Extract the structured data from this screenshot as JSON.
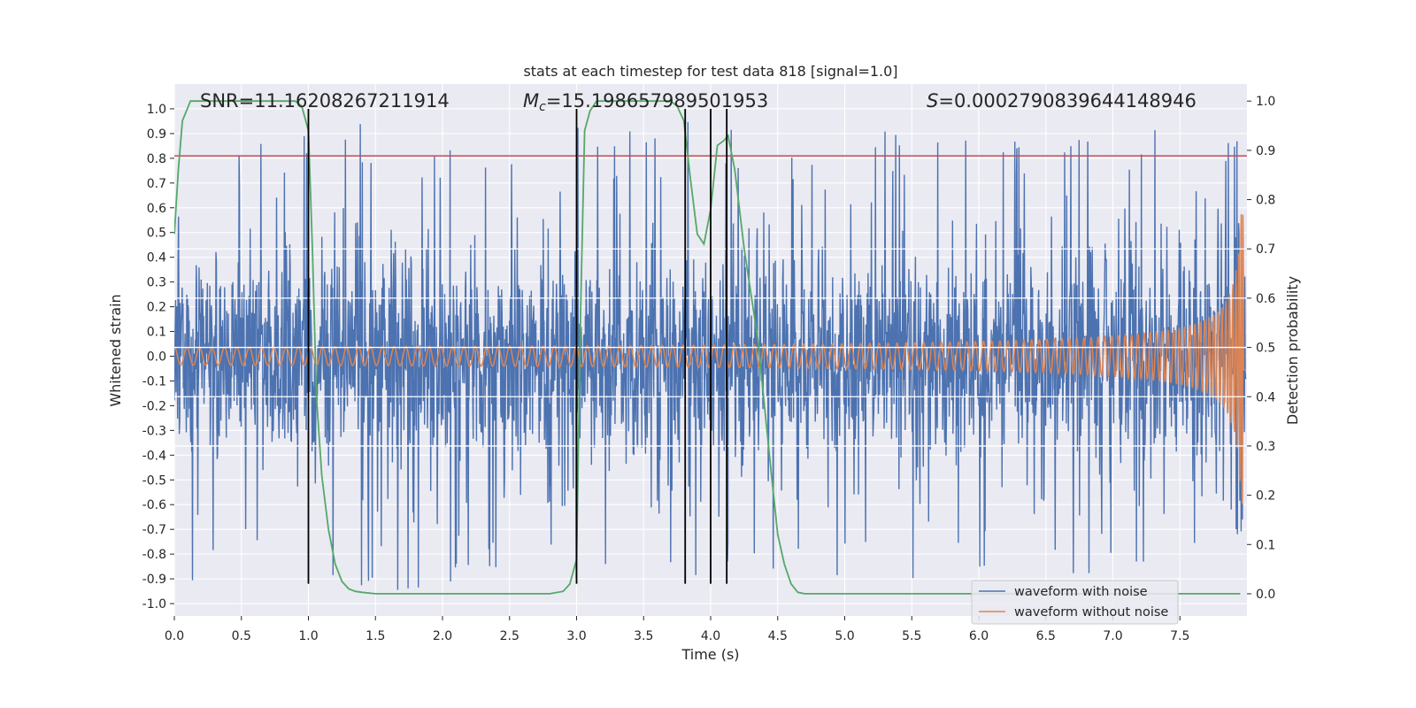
{
  "chart_data": {
    "type": "line",
    "title": "stats at each timestep for test data 818 [signal=1.0]",
    "xlabel": "Time (s)",
    "ylabel": "Whitened strain",
    "y2label": "Detection probability",
    "xlim": [
      0.0,
      8.0
    ],
    "ylim": [
      -1.05,
      1.1
    ],
    "y2lim": [
      -0.045,
      1.0345
    ],
    "x_ticks": [
      "0.0",
      "0.5",
      "1.0",
      "1.5",
      "2.0",
      "2.5",
      "3.0",
      "3.5",
      "4.0",
      "4.5",
      "5.0",
      "5.5",
      "6.0",
      "6.5",
      "7.0",
      "7.5"
    ],
    "y_ticks": [
      "1.0",
      "0.9",
      "0.8",
      "0.7",
      "0.6",
      "0.5",
      "0.4",
      "0.3",
      "0.2",
      "0.1",
      "0.0",
      "-0.1",
      "-0.2",
      "-0.3",
      "-0.4",
      "-0.5",
      "-0.6",
      "-0.7",
      "-0.8",
      "-0.9",
      "-1.0"
    ],
    "y2_ticks": [
      "1.0",
      "0.9",
      "0.8",
      "0.7",
      "0.6",
      "0.5",
      "0.4",
      "0.3",
      "0.2",
      "0.1",
      "0.0"
    ],
    "grid": true,
    "legend_position": "lower-right",
    "annotations": {
      "snr": "SNR=11.16208267211914",
      "mc_symbol": "M",
      "mc_sub": "c",
      "mc_value": "=15.198657989501953",
      "s_symbol": "S",
      "s_value": "=0.0002790839644148946"
    },
    "series": [
      {
        "name": "waveform with noise",
        "color": "#4c72b0",
        "style": "dense noisy strain, amplitude mostly within ±0.5 with spikes to about ±0.95",
        "noise_envelope": 0.5,
        "spike_max": 1.0
      },
      {
        "name": "waveform without noise",
        "color": "#dd8452",
        "style": "chirp signal",
        "amplitude_start": 0.018,
        "amplitude_end": 0.62,
        "t_merger": 7.98
      },
      {
        "name": "detection probability",
        "axis": "right",
        "color": "#55a868",
        "x": [
          0.0,
          0.03,
          0.06,
          0.12,
          0.2,
          0.3,
          0.4,
          0.5,
          0.6,
          0.7,
          0.8,
          0.9,
          0.95,
          0.98,
          1.0,
          1.03,
          1.06,
          1.1,
          1.15,
          1.2,
          1.25,
          1.3,
          1.35,
          1.4,
          1.5,
          2.0,
          2.5,
          2.8,
          2.9,
          2.95,
          3.0,
          3.03,
          3.06,
          3.1,
          3.15,
          3.2,
          3.3,
          3.5,
          3.7,
          3.75,
          3.8,
          3.85,
          3.9,
          3.95,
          4.0,
          4.05,
          4.1,
          4.13,
          4.18,
          4.25,
          4.35,
          4.45,
          4.5,
          4.55,
          4.6,
          4.65,
          4.7,
          5.0,
          6.0,
          7.0,
          7.95
        ],
        "values": [
          0.73,
          0.86,
          0.96,
          1.0,
          1.0,
          1.0,
          1.0,
          1.0,
          1.0,
          1.0,
          1.0,
          1.0,
          0.99,
          0.96,
          0.94,
          0.7,
          0.4,
          0.24,
          0.13,
          0.06,
          0.025,
          0.01,
          0.005,
          0.003,
          0.0,
          0.0,
          0.0,
          0.0,
          0.005,
          0.02,
          0.07,
          0.57,
          0.94,
          0.98,
          1.0,
          1.0,
          1.0,
          1.0,
          1.0,
          0.99,
          0.96,
          0.84,
          0.73,
          0.71,
          0.78,
          0.91,
          0.92,
          0.93,
          0.86,
          0.7,
          0.52,
          0.25,
          0.12,
          0.06,
          0.02,
          0.003,
          0.0,
          0.0,
          0.0,
          0.0,
          0.0
        ]
      }
    ],
    "hline": {
      "y": 0.81,
      "color": "#c44e52"
    },
    "vlines": {
      "x": [
        1.0,
        3.0,
        3.81,
        4.0,
        4.12
      ],
      "y_range": [
        -0.92,
        1.0
      ],
      "color": "#000000"
    },
    "right_axis_gridlines_y2": [
      0.7,
      0.6,
      0.5,
      0.4,
      0.3
    ]
  }
}
